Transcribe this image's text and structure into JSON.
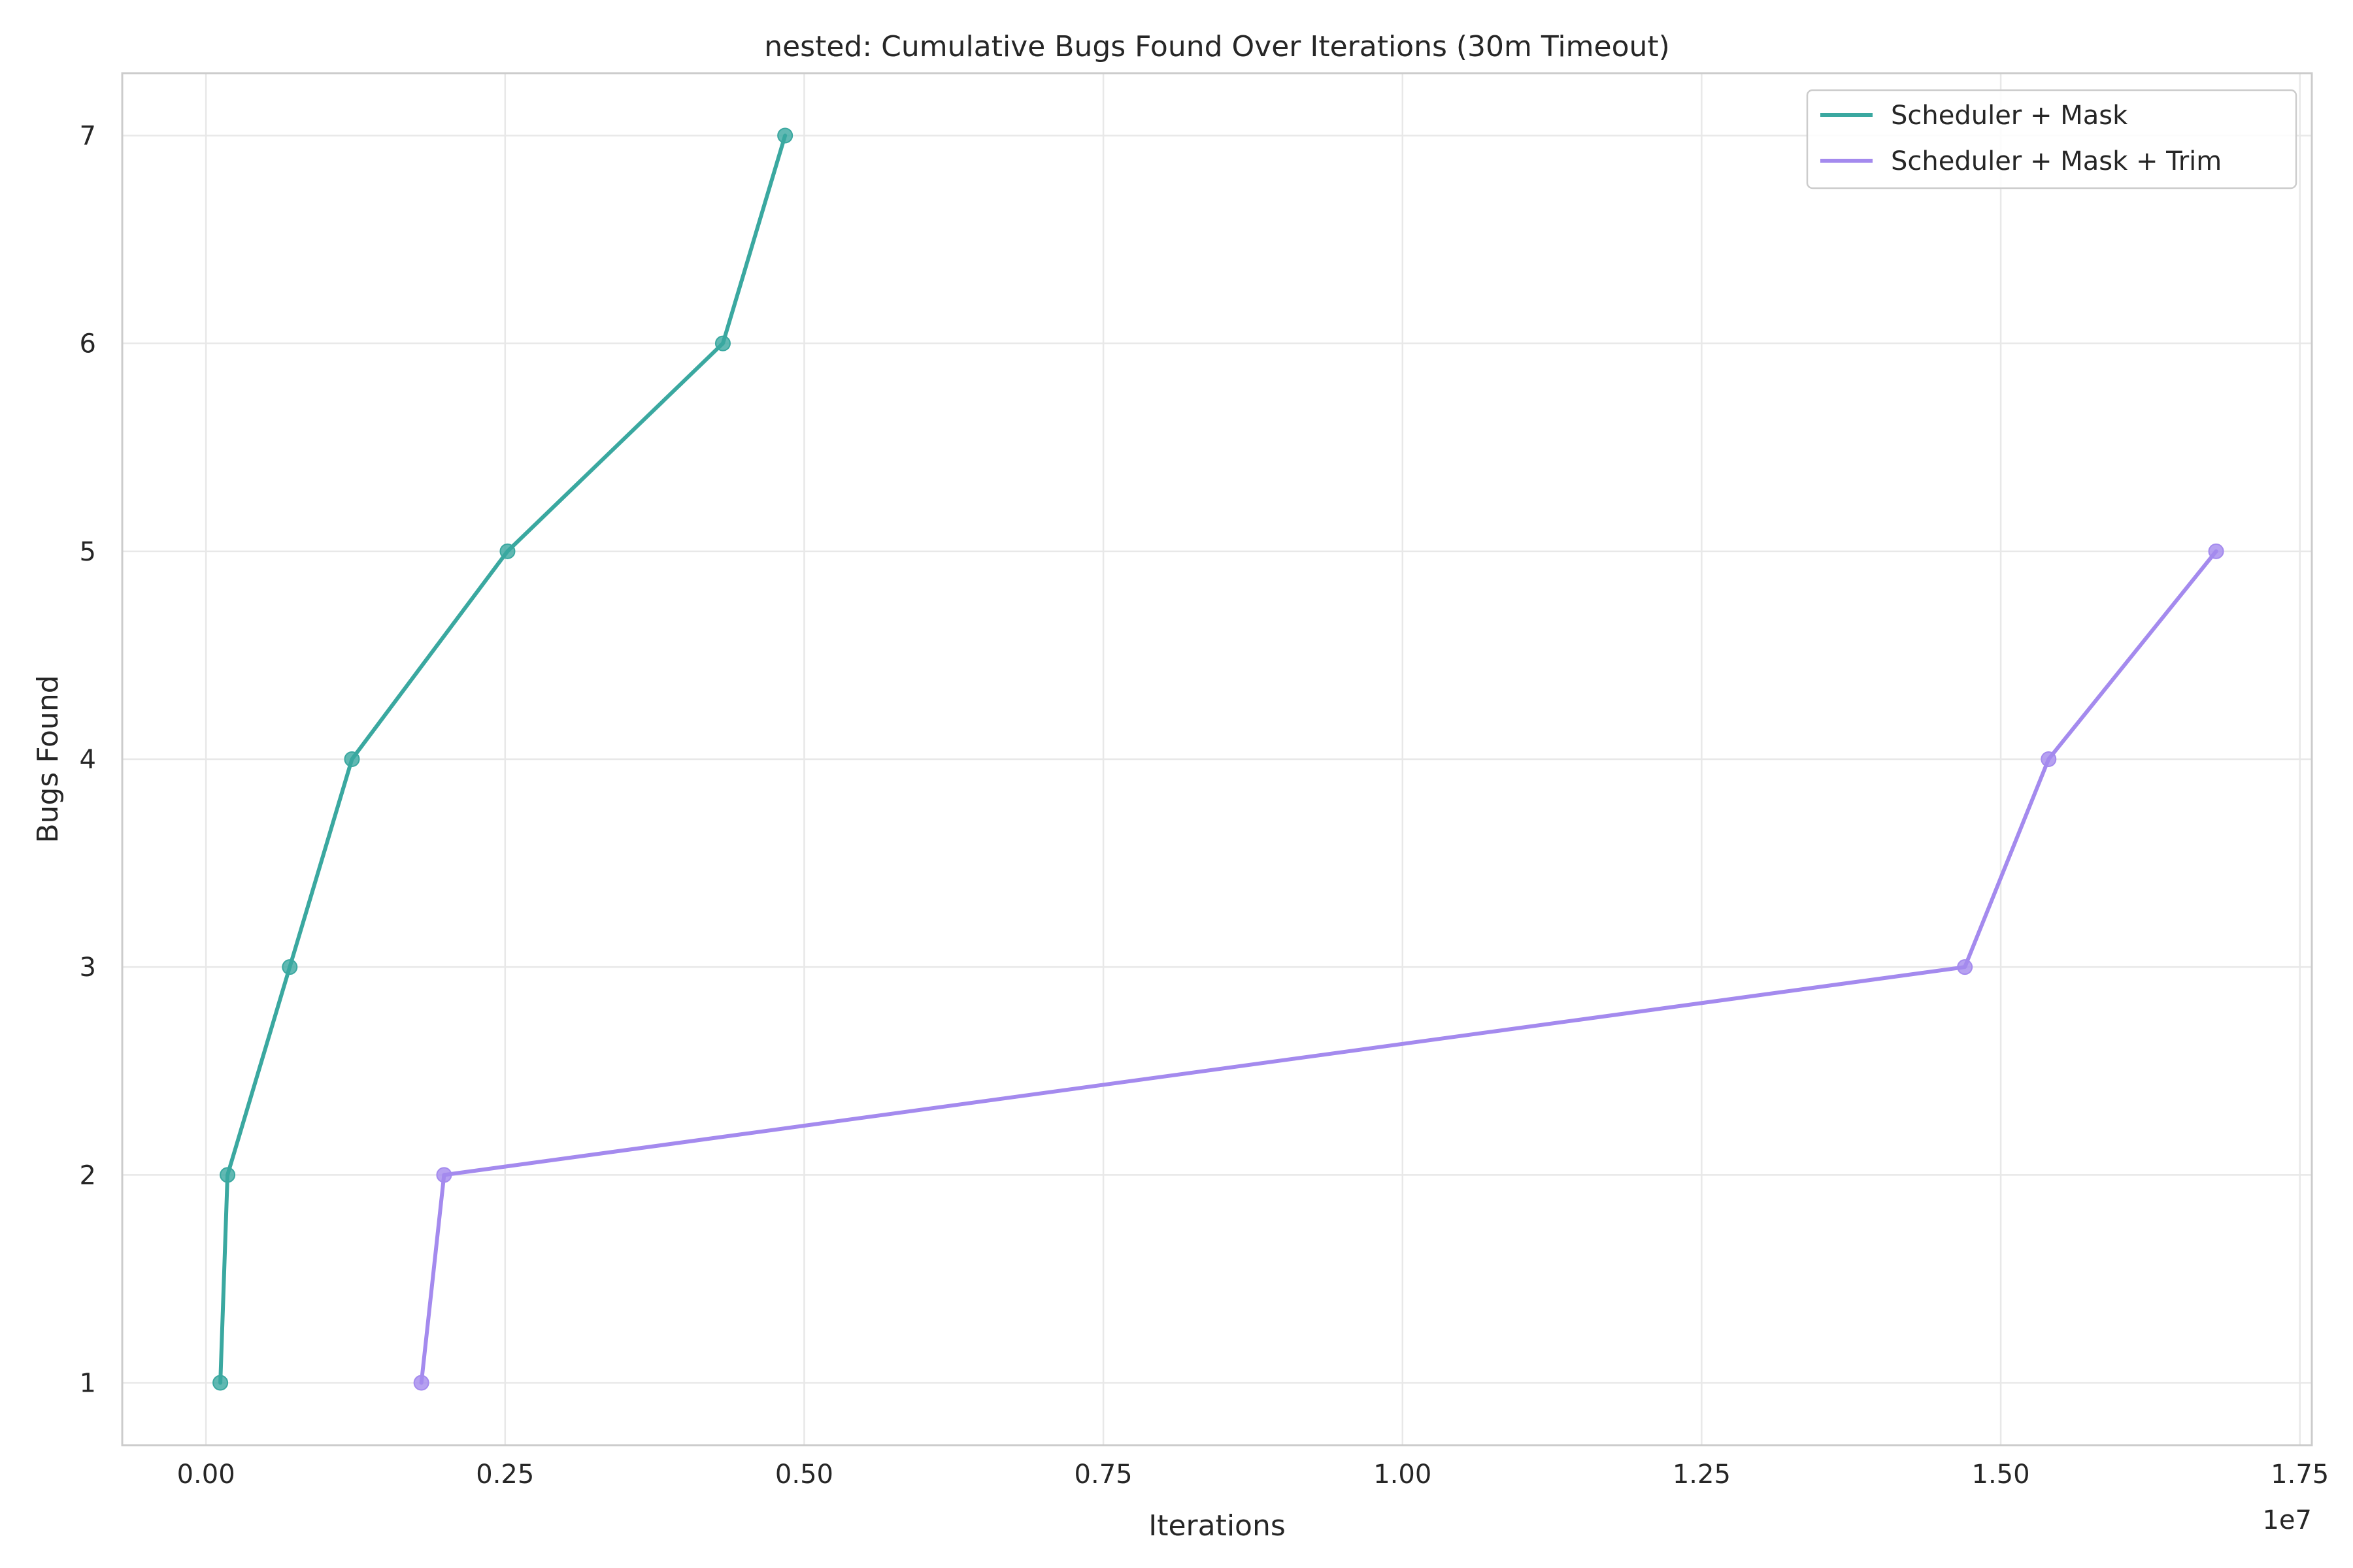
{
  "chart_data": {
    "type": "line",
    "title": "nested: Cumulative Bugs Found Over Iterations (30m Timeout)",
    "xlabel": "Iterations",
    "ylabel": "Bugs Found",
    "x_offset_label": "1e7",
    "xlim": [
      -0.07,
      1.76
    ],
    "ylim": [
      0.7,
      7.3
    ],
    "x_ticks": [
      0.0,
      0.25,
      0.5,
      0.75,
      1.0,
      1.25,
      1.5,
      1.75
    ],
    "x_tick_labels": [
      "0.00",
      "0.25",
      "0.50",
      "0.75",
      "1.00",
      "1.25",
      "1.50",
      "1.75"
    ],
    "y_ticks": [
      1,
      2,
      3,
      4,
      5,
      6,
      7
    ],
    "y_tick_labels": [
      "1",
      "2",
      "3",
      "4",
      "5",
      "6",
      "7"
    ],
    "grid": true,
    "legend_position": "top-right",
    "series": [
      {
        "name": "Scheduler + Mask",
        "color": "#3aa8a0",
        "x": [
          0.012,
          0.018,
          0.07,
          0.122,
          0.252,
          0.432,
          0.484
        ],
        "y": [
          1,
          2,
          3,
          4,
          5,
          6,
          7
        ]
      },
      {
        "name": "Scheduler + Mask + Trim",
        "color": "#a48aee",
        "x": [
          0.18,
          0.199,
          1.47,
          1.54,
          1.68
        ],
        "y": [
          1,
          2,
          3,
          4,
          5
        ]
      }
    ]
  }
}
